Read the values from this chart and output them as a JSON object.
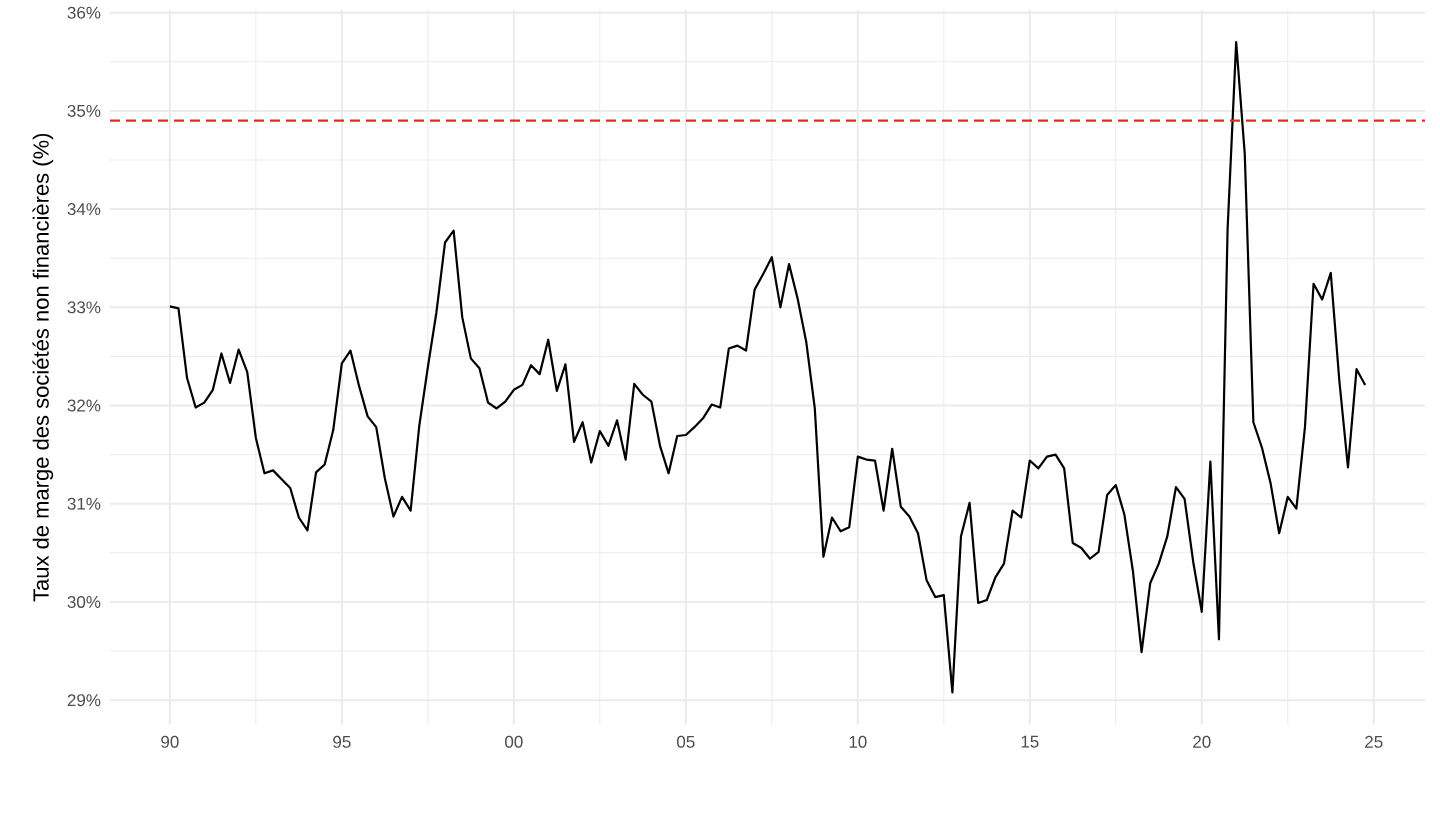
{
  "chart_data": {
    "type": "line",
    "ylabel": "Taux de marge des sociétés non financières (%)",
    "x": [
      1990,
      1990.25,
      1990.5,
      1990.75,
      1991,
      1991.25,
      1991.5,
      1991.75,
      1992,
      1992.25,
      1992.5,
      1992.75,
      1993,
      1993.25,
      1993.5,
      1993.75,
      1994,
      1994.25,
      1994.5,
      1994.75,
      1995,
      1995.25,
      1995.5,
      1995.75,
      1996,
      1996.25,
      1996.5,
      1996.75,
      1997,
      1997.25,
      1997.5,
      1997.75,
      1998,
      1998.25,
      1998.5,
      1998.75,
      1999,
      1999.25,
      1999.5,
      1999.75,
      2000,
      2000.25,
      2000.5,
      2000.75,
      2001,
      2001.25,
      2001.5,
      2001.75,
      2002,
      2002.25,
      2002.5,
      2002.75,
      2003,
      2003.25,
      2003.5,
      2003.75,
      2004,
      2004.25,
      2004.5,
      2004.75,
      2005,
      2005.25,
      2005.5,
      2005.75,
      2006,
      2006.25,
      2006.5,
      2006.75,
      2007,
      2007.25,
      2007.5,
      2007.75,
      2008,
      2008.25,
      2008.5,
      2008.75,
      2009,
      2009.25,
      2009.5,
      2009.75,
      2010,
      2010.25,
      2010.5,
      2010.75,
      2011,
      2011.25,
      2011.5,
      2011.75,
      2012,
      2012.25,
      2012.5,
      2012.75,
      2013,
      2013.25,
      2013.5,
      2013.75,
      2014,
      2014.25,
      2014.5,
      2014.75,
      2015,
      2015.25,
      2015.5,
      2015.75,
      2016,
      2016.25,
      2016.5,
      2016.75,
      2017,
      2017.25,
      2017.5,
      2017.75,
      2018,
      2018.25,
      2018.5,
      2018.75,
      2019,
      2019.25,
      2019.5,
      2019.75,
      2020,
      2020.25,
      2020.5,
      2020.75,
      2021,
      2021.25,
      2021.5,
      2021.75,
      2022,
      2022.25,
      2022.5,
      2022.75,
      2023,
      2023.25,
      2023.5,
      2023.75,
      2024,
      2024.25,
      2024.5,
      2024.75
    ],
    "series": [
      {
        "color": "#000000",
        "values": [
          33.01,
          32.99,
          32.28,
          31.98,
          32.03,
          32.16,
          32.53,
          32.23,
          32.57,
          32.34,
          31.67,
          31.31,
          31.34,
          31.25,
          31.16,
          30.86,
          30.73,
          31.32,
          31.4,
          31.75,
          32.43,
          32.56,
          32.2,
          31.89,
          31.78,
          31.26,
          30.87,
          31.07,
          30.93,
          31.79,
          32.39,
          32.95,
          33.66,
          33.78,
          32.9,
          32.48,
          32.38,
          32.03,
          31.97,
          32.04,
          32.16,
          32.21,
          32.41,
          32.32,
          32.67,
          32.15,
          32.42,
          31.63,
          31.83,
          31.42,
          31.74,
          31.59,
          31.85,
          31.45,
          32.22,
          32.11,
          32.04,
          31.59,
          31.31,
          31.69,
          31.7,
          31.78,
          31.87,
          32.01,
          31.98,
          32.58,
          32.61,
          32.56,
          33.18,
          33.34,
          33.51,
          33.0,
          33.44,
          33.09,
          32.65,
          31.97,
          30.46,
          30.86,
          30.72,
          30.76,
          31.48,
          31.45,
          31.44,
          30.93,
          31.56,
          30.97,
          30.87,
          30.7,
          30.22,
          30.05,
          30.07,
          29.08,
          30.67,
          31.01,
          29.99,
          30.02,
          30.25,
          30.39,
          30.93,
          30.86,
          31.44,
          31.36,
          31.48,
          31.5,
          31.36,
          30.6,
          30.55,
          30.44,
          30.51,
          31.09,
          31.19,
          30.89,
          30.31,
          29.49,
          30.19,
          30.39,
          30.67,
          31.17,
          31.05,
          30.41,
          29.9,
          31.43,
          29.62,
          33.79,
          35.7,
          34.56,
          31.83,
          31.57,
          31.21,
          30.7,
          31.07,
          30.95,
          31.78,
          33.24,
          33.08,
          33.35,
          32.25,
          31.37,
          32.37,
          32.21
        ]
      }
    ],
    "xlim": [
      1988.26,
      2026.49
    ],
    "ylim": [
      28.75,
      36.03
    ],
    "xticks": [
      {
        "value": 1990,
        "label": "90"
      },
      {
        "value": 1995,
        "label": "95"
      },
      {
        "value": 2000,
        "label": "00"
      },
      {
        "value": 2005,
        "label": "05"
      },
      {
        "value": 2010,
        "label": "10"
      },
      {
        "value": 2015,
        "label": "15"
      },
      {
        "value": 2020,
        "label": "20"
      },
      {
        "value": 2025,
        "label": "25"
      }
    ],
    "yticks": [
      {
        "value": 29,
        "label": "29%"
      },
      {
        "value": 30,
        "label": "30%"
      },
      {
        "value": 31,
        "label": "31%"
      },
      {
        "value": 32,
        "label": "32%"
      },
      {
        "value": 33,
        "label": "33%"
      },
      {
        "value": 34,
        "label": "34%"
      },
      {
        "value": 35,
        "label": "35%"
      },
      {
        "value": 36,
        "label": "36%"
      }
    ],
    "ref_lines": [
      {
        "axis": "y",
        "value": 34.9,
        "color": "#e8291c",
        "line_style": "dashed"
      }
    ],
    "grid": true,
    "line_style": "solid"
  }
}
